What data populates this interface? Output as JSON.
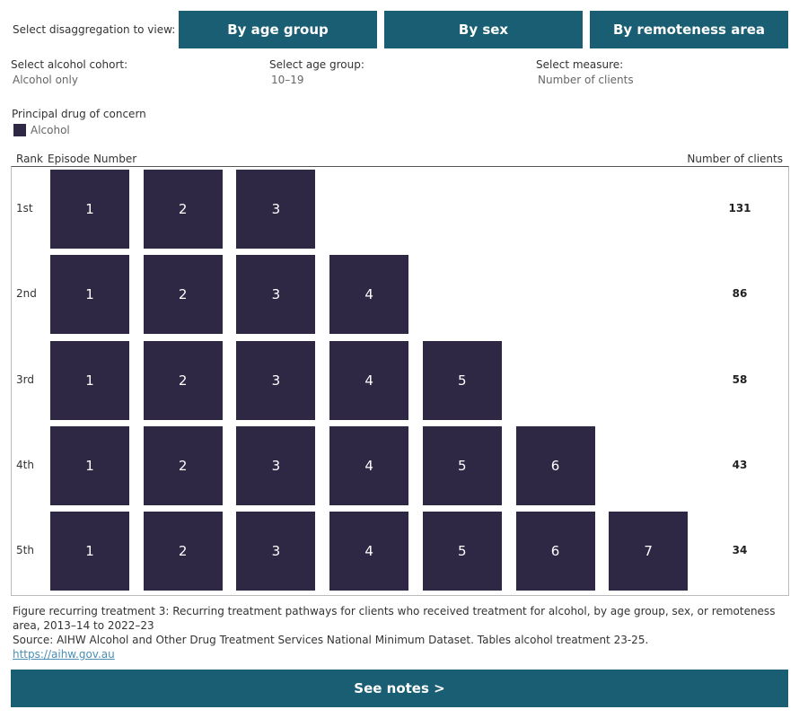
{
  "header": {
    "prompt": "Select disaggregation to view:",
    "buttons": [
      "By age group",
      "By sex",
      "By remoteness area"
    ]
  },
  "filters": [
    {
      "label": "Select alcohol cohort:",
      "value": "Alcohol only"
    },
    {
      "label": "Select age group:",
      "value": "10–19"
    },
    {
      "label": "Select measure:",
      "value": "Number of clients"
    }
  ],
  "legend": {
    "title": "Principal drug of concern",
    "items": [
      {
        "label": "Alcohol",
        "color": "#2f2845"
      }
    ]
  },
  "table": {
    "columns": [
      "Rank",
      "Episode Number",
      "Number of clients"
    ],
    "rows": [
      {
        "rank": "1st",
        "episodes": [
          1,
          2,
          3
        ],
        "clients": 131
      },
      {
        "rank": "2nd",
        "episodes": [
          1,
          2,
          3,
          4
        ],
        "clients": 86
      },
      {
        "rank": "3rd",
        "episodes": [
          1,
          2,
          3,
          4,
          5
        ],
        "clients": 58
      },
      {
        "rank": "4th",
        "episodes": [
          1,
          2,
          3,
          4,
          5,
          6
        ],
        "clients": 43
      },
      {
        "rank": "5th",
        "episodes": [
          1,
          2,
          3,
          4,
          5,
          6,
          7
        ],
        "clients": 34
      }
    ]
  },
  "caption": [
    "Figure recurring treatment 3: Recurring treatment pathways for clients who received treatment for alcohol, by  age group, sex, or remoteness area, 2013–14 to 2022–23",
    "Source: AIHW Alcohol and Other Drug Treatment Services National Minimum Dataset. Tables alcohol treatment 23-25."
  ],
  "link": "https://aihw.gov.au",
  "notes_button": "See notes >"
}
